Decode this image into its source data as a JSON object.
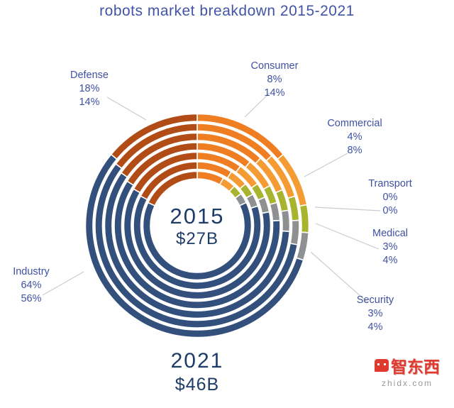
{
  "title": "robots market breakdown 2015-2021",
  "center": {
    "year": "2015",
    "value": "$27B"
  },
  "bottom": {
    "year": "2021",
    "value": "$46B"
  },
  "watermark": {
    "logo_text": "智东西",
    "site": "zhidx.com"
  },
  "chart_data": {
    "type": "donut-multi-ring",
    "title": "robots market breakdown 2015-2021",
    "rings": [
      "2015",
      "2016",
      "2017",
      "2018",
      "2019",
      "2020",
      "2021"
    ],
    "interpolation": "linear between 2015 and 2021 shares",
    "totals": {
      "2015": "$27B",
      "2021": "$46B"
    },
    "legend_position": "callout-labels",
    "segments": [
      {
        "label": "Consumer",
        "pct_2015": 8,
        "pct_2021": 14,
        "pct_2015_text": "8%",
        "pct_2021_text": "14%",
        "color": "#ef7d22"
      },
      {
        "label": "Commercial",
        "pct_2015": 4,
        "pct_2021": 8,
        "pct_2015_text": "4%",
        "pct_2021_text": "8%",
        "color": "#f49b33"
      },
      {
        "label": "Transport",
        "pct_2015": 0,
        "pct_2021": 0,
        "pct_2015_text": "0%",
        "pct_2021_text": "0%",
        "color": "#4e7a28"
      },
      {
        "label": "Medical",
        "pct_2015": 3,
        "pct_2021": 4,
        "pct_2015_text": "3%",
        "pct_2021_text": "4%",
        "color": "#a9b42e"
      },
      {
        "label": "Security",
        "pct_2015": 3,
        "pct_2021": 4,
        "pct_2015_text": "3%",
        "pct_2021_text": "4%",
        "color": "#8f9092"
      },
      {
        "label": "Industry",
        "pct_2015": 64,
        "pct_2021": 56,
        "pct_2015_text": "64%",
        "pct_2021_text": "56%",
        "color": "#33507d"
      },
      {
        "label": "Defense",
        "pct_2015": 18,
        "pct_2021": 14,
        "pct_2015_text": "18%",
        "pct_2021_text": "14%",
        "color": "#b24c16"
      }
    ]
  }
}
